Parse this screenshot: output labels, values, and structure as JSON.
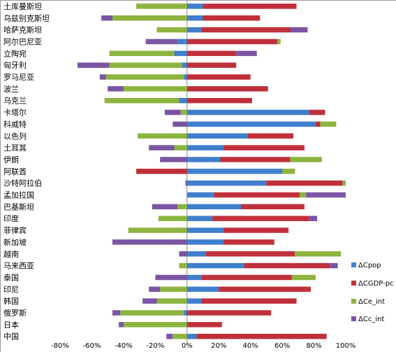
{
  "chart_data": {
    "type": "bar",
    "orientation": "horizontal",
    "stacked": true,
    "categories": [
      "土库曼斯坦",
      "乌兹别克斯坦",
      "哈萨克斯坦",
      "阿尔巴尼亚",
      "立陶宛",
      "匈牙利",
      "罗马尼亚",
      "波兰",
      "乌克兰",
      "卡塔尔",
      "科威特",
      "以色列",
      "土耳其",
      "伊朗",
      "阿联酋",
      "沙特阿拉伯",
      "孟加拉国",
      "巴基斯坦",
      "印度",
      "菲律宾",
      "新加坡",
      "越南",
      "马来西亚",
      "泰国",
      "印尼",
      "韩国",
      "俄罗斯",
      "日本",
      "中国"
    ],
    "series": [
      {
        "name": "ΔCpop",
        "color": "#3F7FCC",
        "values": [
          10,
          10,
          9,
          -6,
          -8,
          -3,
          -2,
          0,
          -5,
          77,
          81,
          38,
          23,
          21,
          60,
          50,
          17,
          34,
          16,
          23,
          23,
          12,
          36,
          9,
          20,
          9,
          -2,
          0,
          6
        ]
      },
      {
        "name": "ΔCGDP-pc",
        "color": "#C0303A",
        "values": [
          59,
          36,
          56,
          57,
          31,
          31,
          40,
          51,
          41,
          10,
          3,
          29,
          51,
          44,
          -32,
          48,
          54,
          40,
          61,
          41,
          32,
          56,
          54,
          57,
          58,
          60,
          53,
          22,
          82
        ]
      },
      {
        "name": "ΔCe_int",
        "color": "#8DB43E",
        "values": [
          -32,
          -47,
          -19,
          2,
          -41,
          -46,
          -49,
          -40,
          -47,
          -4,
          10,
          -31,
          -8,
          20,
          8,
          2,
          4,
          -6,
          -18,
          -37,
          0,
          29,
          -5,
          15,
          -17,
          -19,
          -40,
          -40,
          -9
        ]
      },
      {
        "name": "ΔCc_int",
        "color": "#7B54A3",
        "values": [
          0,
          -7,
          11,
          -20,
          13,
          -20,
          -4,
          -10,
          0,
          -10,
          -9,
          0,
          -16,
          -17,
          0,
          -1,
          25,
          -16,
          5,
          0,
          -47,
          -5,
          5,
          -20,
          -7,
          -9,
          -5,
          -3,
          -4
        ]
      }
    ],
    "xlim": [
      -80,
      100
    ],
    "xticks": [
      -80,
      -60,
      -40,
      -20,
      0,
      20,
      40,
      60,
      80,
      100
    ],
    "xtick_labels": [
      "-80%",
      "-60%",
      "-40%",
      "-20%",
      "0%",
      "20%",
      "40%",
      "60%",
      "80%",
      "100%"
    ],
    "legend_position": "right",
    "grid": false
  }
}
